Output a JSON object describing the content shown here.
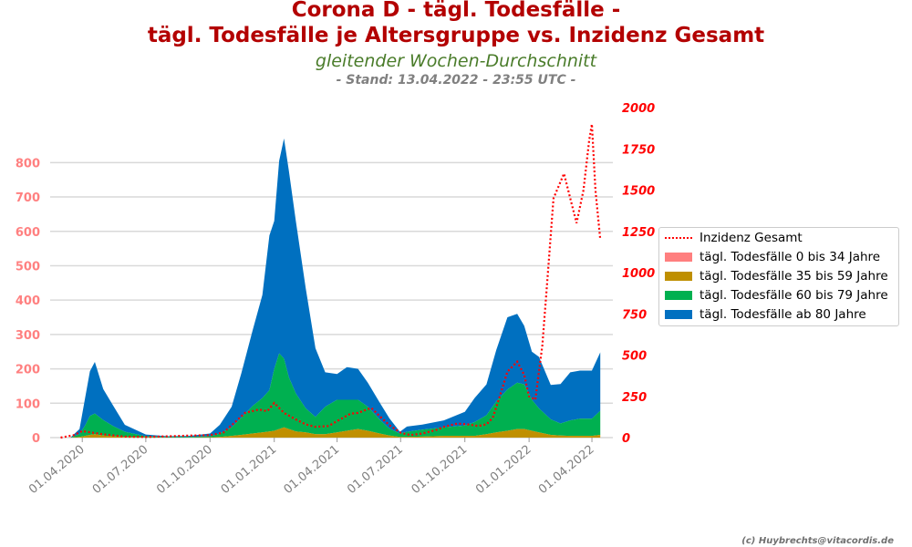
{
  "header": {
    "title_line1": "Corona D - tägl. Todesfälle -",
    "title_line2": "tägl. Todesfälle je Altersgruppe vs. Inzidenz Gesamt",
    "subtitle": "gleitender Wochen-Durchschnitt",
    "stand": "- Stand: 13.04.2022 - 23:55 UTC -"
  },
  "credit": "(c) Huybrechts@vitacordis.de",
  "chart_data": {
    "type": "area",
    "y_left": {
      "ticks": [
        "0",
        "100",
        "200",
        "300",
        "400",
        "500",
        "600",
        "700",
        "800"
      ],
      "lim": [
        0,
        960
      ]
    },
    "y_right": {
      "ticks": [
        "0",
        "250",
        "500",
        "750",
        "1000",
        "1250",
        "1500",
        "1750",
        "2000"
      ],
      "lim": [
        0,
        2000
      ]
    },
    "x_ticks": [
      "01.04.2020",
      "01.07.2020",
      "01.10.2020",
      "01.01.2021",
      "01.04.2021",
      "01.07.2021",
      "01.10.2021",
      "01.01.2022",
      "01.04.2022"
    ],
    "x_tick_dates": [
      "2020-04-01",
      "2020-07-01",
      "2020-10-01",
      "2021-01-01",
      "2021-04-01",
      "2021-07-01",
      "2021-10-01",
      "2022-01-01",
      "2022-04-01"
    ],
    "x_range": [
      "2020-02-15",
      "2022-05-01"
    ],
    "dates": [
      "2020-03-01",
      "2020-03-15",
      "2020-03-28",
      "2020-04-05",
      "2020-04-12",
      "2020-04-19",
      "2020-05-01",
      "2020-05-15",
      "2020-06-01",
      "2020-07-01",
      "2020-08-01",
      "2020-09-01",
      "2020-10-01",
      "2020-10-15",
      "2020-11-01",
      "2020-11-15",
      "2020-12-01",
      "2020-12-15",
      "2020-12-25",
      "2021-01-01",
      "2021-01-08",
      "2021-01-15",
      "2021-01-22",
      "2021-02-01",
      "2021-02-15",
      "2021-03-01",
      "2021-03-15",
      "2021-04-01",
      "2021-04-15",
      "2021-05-01",
      "2021-05-15",
      "2021-06-01",
      "2021-06-15",
      "2021-06-30",
      "2021-07-10",
      "2021-08-01",
      "2021-09-01",
      "2021-10-01",
      "2021-10-15",
      "2021-11-01",
      "2021-11-15",
      "2021-12-01",
      "2021-12-15",
      "2021-12-25",
      "2022-01-05",
      "2022-01-15",
      "2022-02-01",
      "2022-02-15",
      "2022-03-01",
      "2022-03-15",
      "2022-04-01",
      "2022-04-13"
    ],
    "series": [
      {
        "name": "tägl. Todesfälle 0 bis 34 Jahre",
        "color": "#ff7f7f",
        "values": [
          0,
          0,
          0,
          0,
          0,
          0,
          0,
          0,
          0,
          0,
          0,
          0,
          0,
          0,
          0,
          0,
          0,
          0,
          0,
          0,
          0,
          0,
          0,
          0,
          0,
          0,
          0,
          0,
          0,
          0,
          0,
          0,
          0,
          0,
          0,
          0,
          0,
          0,
          0,
          0,
          0,
          0,
          0,
          0,
          0,
          0,
          0,
          0,
          0,
          0,
          0,
          0
        ]
      },
      {
        "name": "tägl. Todesfälle 35 bis 59 Jahre",
        "color": "#bf8f00",
        "values": [
          0,
          0,
          2,
          5,
          8,
          10,
          6,
          4,
          2,
          1,
          0,
          0,
          1,
          2,
          5,
          8,
          12,
          15,
          18,
          20,
          25,
          30,
          25,
          18,
          15,
          10,
          10,
          15,
          20,
          25,
          20,
          12,
          6,
          2,
          2,
          3,
          5,
          5,
          5,
          10,
          15,
          20,
          25,
          25,
          20,
          15,
          8,
          6,
          5,
          5,
          5,
          8
        ]
      },
      {
        "name": "tägl. Todesfälle 60 bis 79 Jahre",
        "color": "#00b050",
        "values": [
          0,
          0,
          8,
          30,
          55,
          60,
          45,
          30,
          15,
          3,
          2,
          2,
          3,
          10,
          25,
          50,
          80,
          100,
          120,
          180,
          220,
          200,
          150,
          110,
          70,
          50,
          80,
          95,
          90,
          85,
          70,
          40,
          20,
          10,
          15,
          20,
          25,
          30,
          40,
          55,
          90,
          120,
          135,
          130,
          90,
          70,
          45,
          35,
          45,
          50,
          50,
          70
        ]
      },
      {
        "name": "tägl. Todesfälle ab 80 Jahre",
        "color": "#0070c0",
        "values": [
          0,
          0,
          15,
          80,
          130,
          150,
          90,
          60,
          20,
          5,
          2,
          3,
          8,
          25,
          60,
          130,
          220,
          300,
          450,
          430,
          560,
          640,
          600,
          500,
          350,
          200,
          100,
          75,
          95,
          90,
          70,
          50,
          30,
          5,
          15,
          15,
          20,
          40,
          70,
          90,
          150,
          210,
          200,
          170,
          140,
          150,
          100,
          115,
          140,
          140,
          140,
          170
        ]
      }
    ],
    "incidence": {
      "name": "Inzidenz Gesamt",
      "color": "#ff0000",
      "dates": [
        "2020-03-01",
        "2020-03-20",
        "2020-04-01",
        "2020-05-01",
        "2020-06-01",
        "2020-07-01",
        "2020-08-01",
        "2020-09-01",
        "2020-10-01",
        "2020-10-20",
        "2020-11-05",
        "2020-11-20",
        "2020-12-10",
        "2020-12-22",
        "2021-01-01",
        "2021-01-15",
        "2021-02-01",
        "2021-02-15",
        "2021-03-01",
        "2021-03-20",
        "2021-04-01",
        "2021-04-20",
        "2021-05-01",
        "2021-05-20",
        "2021-06-01",
        "2021-06-15",
        "2021-07-01",
        "2021-07-15",
        "2021-08-01",
        "2021-08-20",
        "2021-09-01",
        "2021-09-20",
        "2021-10-05",
        "2021-10-20",
        "2021-11-01",
        "2021-11-10",
        "2021-11-20",
        "2021-12-01",
        "2021-12-15",
        "2021-12-25",
        "2022-01-01",
        "2022-01-10",
        "2022-01-20",
        "2022-01-28",
        "2022-02-05",
        "2022-02-20",
        "2022-03-01",
        "2022-03-10",
        "2022-03-20",
        "2022-03-28",
        "2022-04-01",
        "2022-04-06",
        "2022-04-13"
      ],
      "values": [
        0,
        15,
        40,
        20,
        6,
        4,
        8,
        12,
        15,
        30,
        90,
        150,
        170,
        160,
        210,
        150,
        110,
        80,
        65,
        70,
        100,
        145,
        150,
        180,
        130,
        75,
        30,
        15,
        25,
        45,
        65,
        85,
        80,
        70,
        80,
        120,
        250,
        400,
        460,
        380,
        250,
        230,
        560,
        1000,
        1450,
        1600,
        1450,
        1300,
        1500,
        1800,
        1900,
        1500,
        1200
      ]
    }
  }
}
